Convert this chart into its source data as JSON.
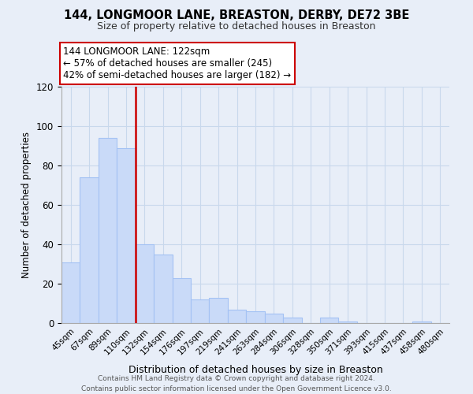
{
  "title": "144, LONGMOOR LANE, BREASTON, DERBY, DE72 3BE",
  "subtitle": "Size of property relative to detached houses in Breaston",
  "xlabel": "Distribution of detached houses by size in Breaston",
  "ylabel": "Number of detached properties",
  "categories": [
    "45sqm",
    "67sqm",
    "89sqm",
    "110sqm",
    "132sqm",
    "154sqm",
    "176sqm",
    "197sqm",
    "219sqm",
    "241sqm",
    "263sqm",
    "284sqm",
    "306sqm",
    "328sqm",
    "350sqm",
    "371sqm",
    "393sqm",
    "415sqm",
    "437sqm",
    "458sqm",
    "480sqm"
  ],
  "values": [
    31,
    74,
    94,
    89,
    40,
    35,
    23,
    12,
    13,
    7,
    6,
    5,
    3,
    0,
    3,
    1,
    0,
    0,
    0,
    1,
    0
  ],
  "bar_color": "#c9daf8",
  "bar_edge_color": "#a4c2f4",
  "vline_color": "#cc0000",
  "annotation_lines": [
    "144 LONGMOOR LANE: 122sqm",
    "← 57% of detached houses are smaller (245)",
    "42% of semi-detached houses are larger (182) →"
  ],
  "annotation_box_color": "#ffffff",
  "annotation_box_edge": "#cc0000",
  "ylim": [
    0,
    120
  ],
  "yticks": [
    0,
    20,
    40,
    60,
    80,
    100,
    120
  ],
  "grid_color": "#c8d8ec",
  "footer_line1": "Contains HM Land Registry data © Crown copyright and database right 2024.",
  "footer_line2": "Contains public sector information licensed under the Open Government Licence v3.0.",
  "bg_color": "#e8eef8"
}
